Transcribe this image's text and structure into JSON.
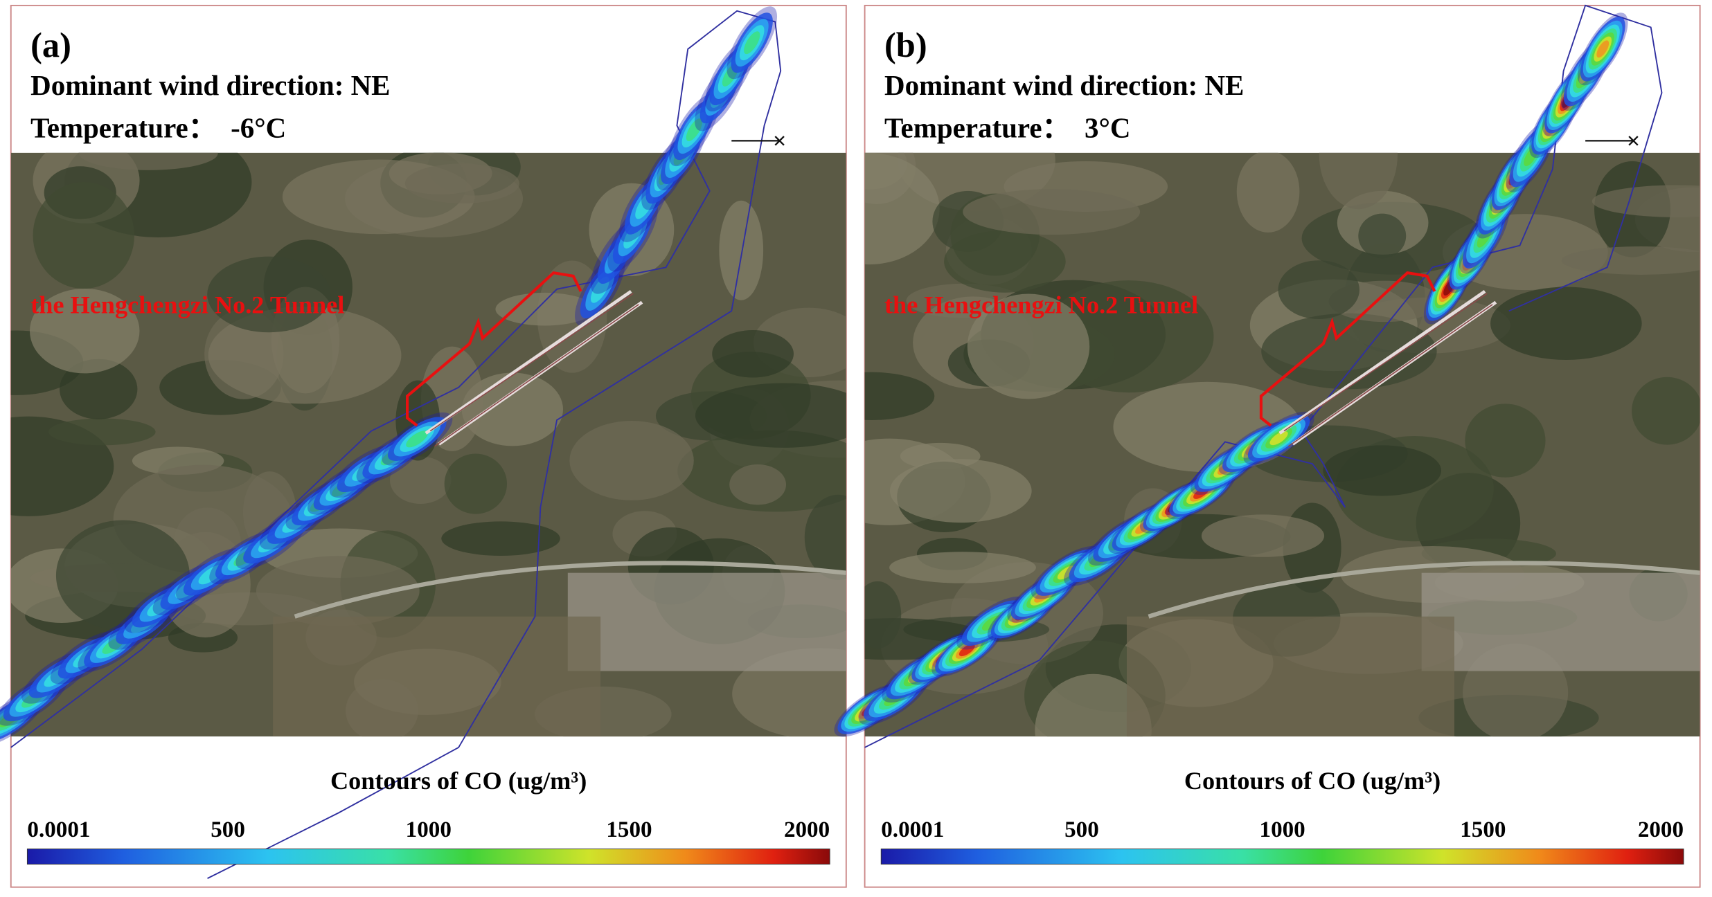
{
  "panels": [
    {
      "label": "(a)",
      "wind": "Dominant wind direction: NE",
      "temperature": "Temperature：  -6°C",
      "tunnel_label": "the Hengchengzi No.2 Tunnel",
      "colorbar": {
        "title": "Contours of CO (ug/m³)",
        "lim": [
          0.0001,
          2000
        ],
        "ticks": [
          0.0001,
          500,
          1000,
          1500,
          2000
        ]
      }
    },
    {
      "label": "(b)",
      "wind": "Dominant wind direction: NE",
      "temperature": "Temperature：  3°C",
      "tunnel_label": "the Hengchengzi No.2 Tunnel",
      "colorbar": {
        "title": "Contours of CO (ug/m³)",
        "lim": [
          0.0001,
          2000
        ],
        "ticks": [
          0.0001,
          500,
          1000,
          1500,
          2000
        ]
      }
    }
  ]
}
